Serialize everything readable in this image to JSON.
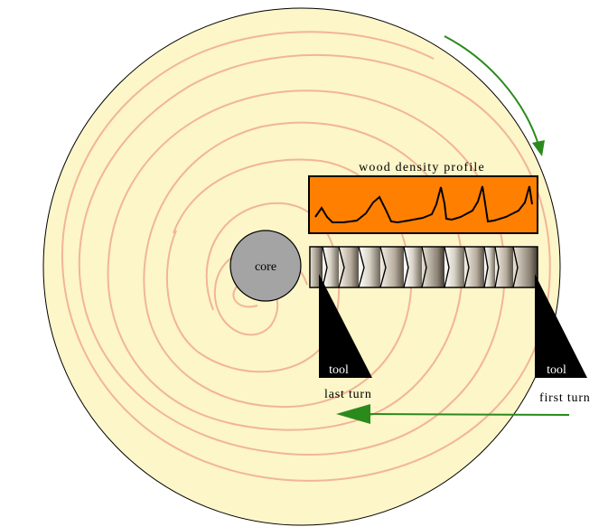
{
  "labels": {
    "core": "core",
    "profile_title": "wood density profile",
    "tool_left": "tool",
    "tool_right": "tool",
    "last_turn": "last turn",
    "first_turn": "first turn"
  },
  "colors": {
    "disc_fill": "#fcf6c8",
    "ring_stroke": "#f2b597",
    "core_fill": "#a4a4a4",
    "profile_fill": "#ff8000",
    "arrow": "#2a8a1c",
    "tool": "#000000"
  },
  "icons": {
    "rotation_arrow": "curved-arrow-icon",
    "feed_arrow": "left-arrow-icon"
  }
}
